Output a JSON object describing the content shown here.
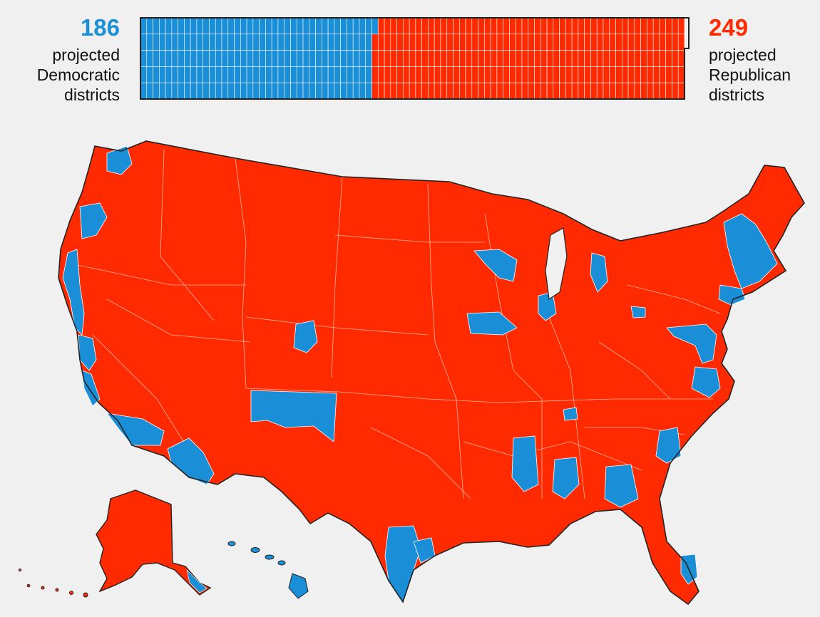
{
  "summary": {
    "democratic": {
      "count": "186",
      "line1": "projected",
      "line2": "Democratic",
      "line3": "districts",
      "color": "#1a8ed6"
    },
    "republican": {
      "count": "249",
      "line1": "projected",
      "line2": "Republican",
      "line3": "districts",
      "color": "#ff2a00"
    },
    "total_seats": 435
  },
  "map": {
    "democratic_color": "#1a8ed6",
    "republican_color": "#ff2a00",
    "border_color": "#222222",
    "background_color": "#f0f0f0"
  }
}
